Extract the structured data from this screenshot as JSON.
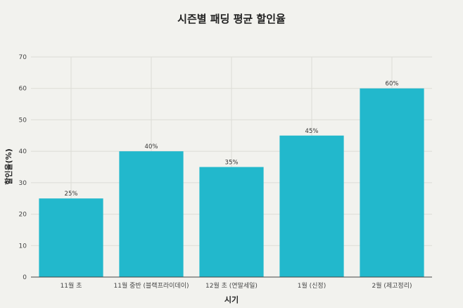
{
  "chart_data": {
    "type": "bar",
    "title": "시즌별 패딩 평균 할인율",
    "xlabel": "시기",
    "ylabel": "할인율(%)",
    "categories": [
      "11월 초",
      "11월 중반 (블랙프라이데이)",
      "12월 초 (연말세일)",
      "1월 (신정)",
      "2월 (제고정리)"
    ],
    "values": [
      25,
      40,
      35,
      45,
      60
    ],
    "data_labels": [
      "25%",
      "40%",
      "35%",
      "45%",
      "60%"
    ],
    "ylim": [
      0,
      70
    ],
    "yticks": [
      0,
      10,
      20,
      30,
      40,
      50,
      60,
      70
    ],
    "grid": true,
    "legend": "none",
    "bar_color": "#22b8cc",
    "background_color": "#f2f2ee"
  }
}
